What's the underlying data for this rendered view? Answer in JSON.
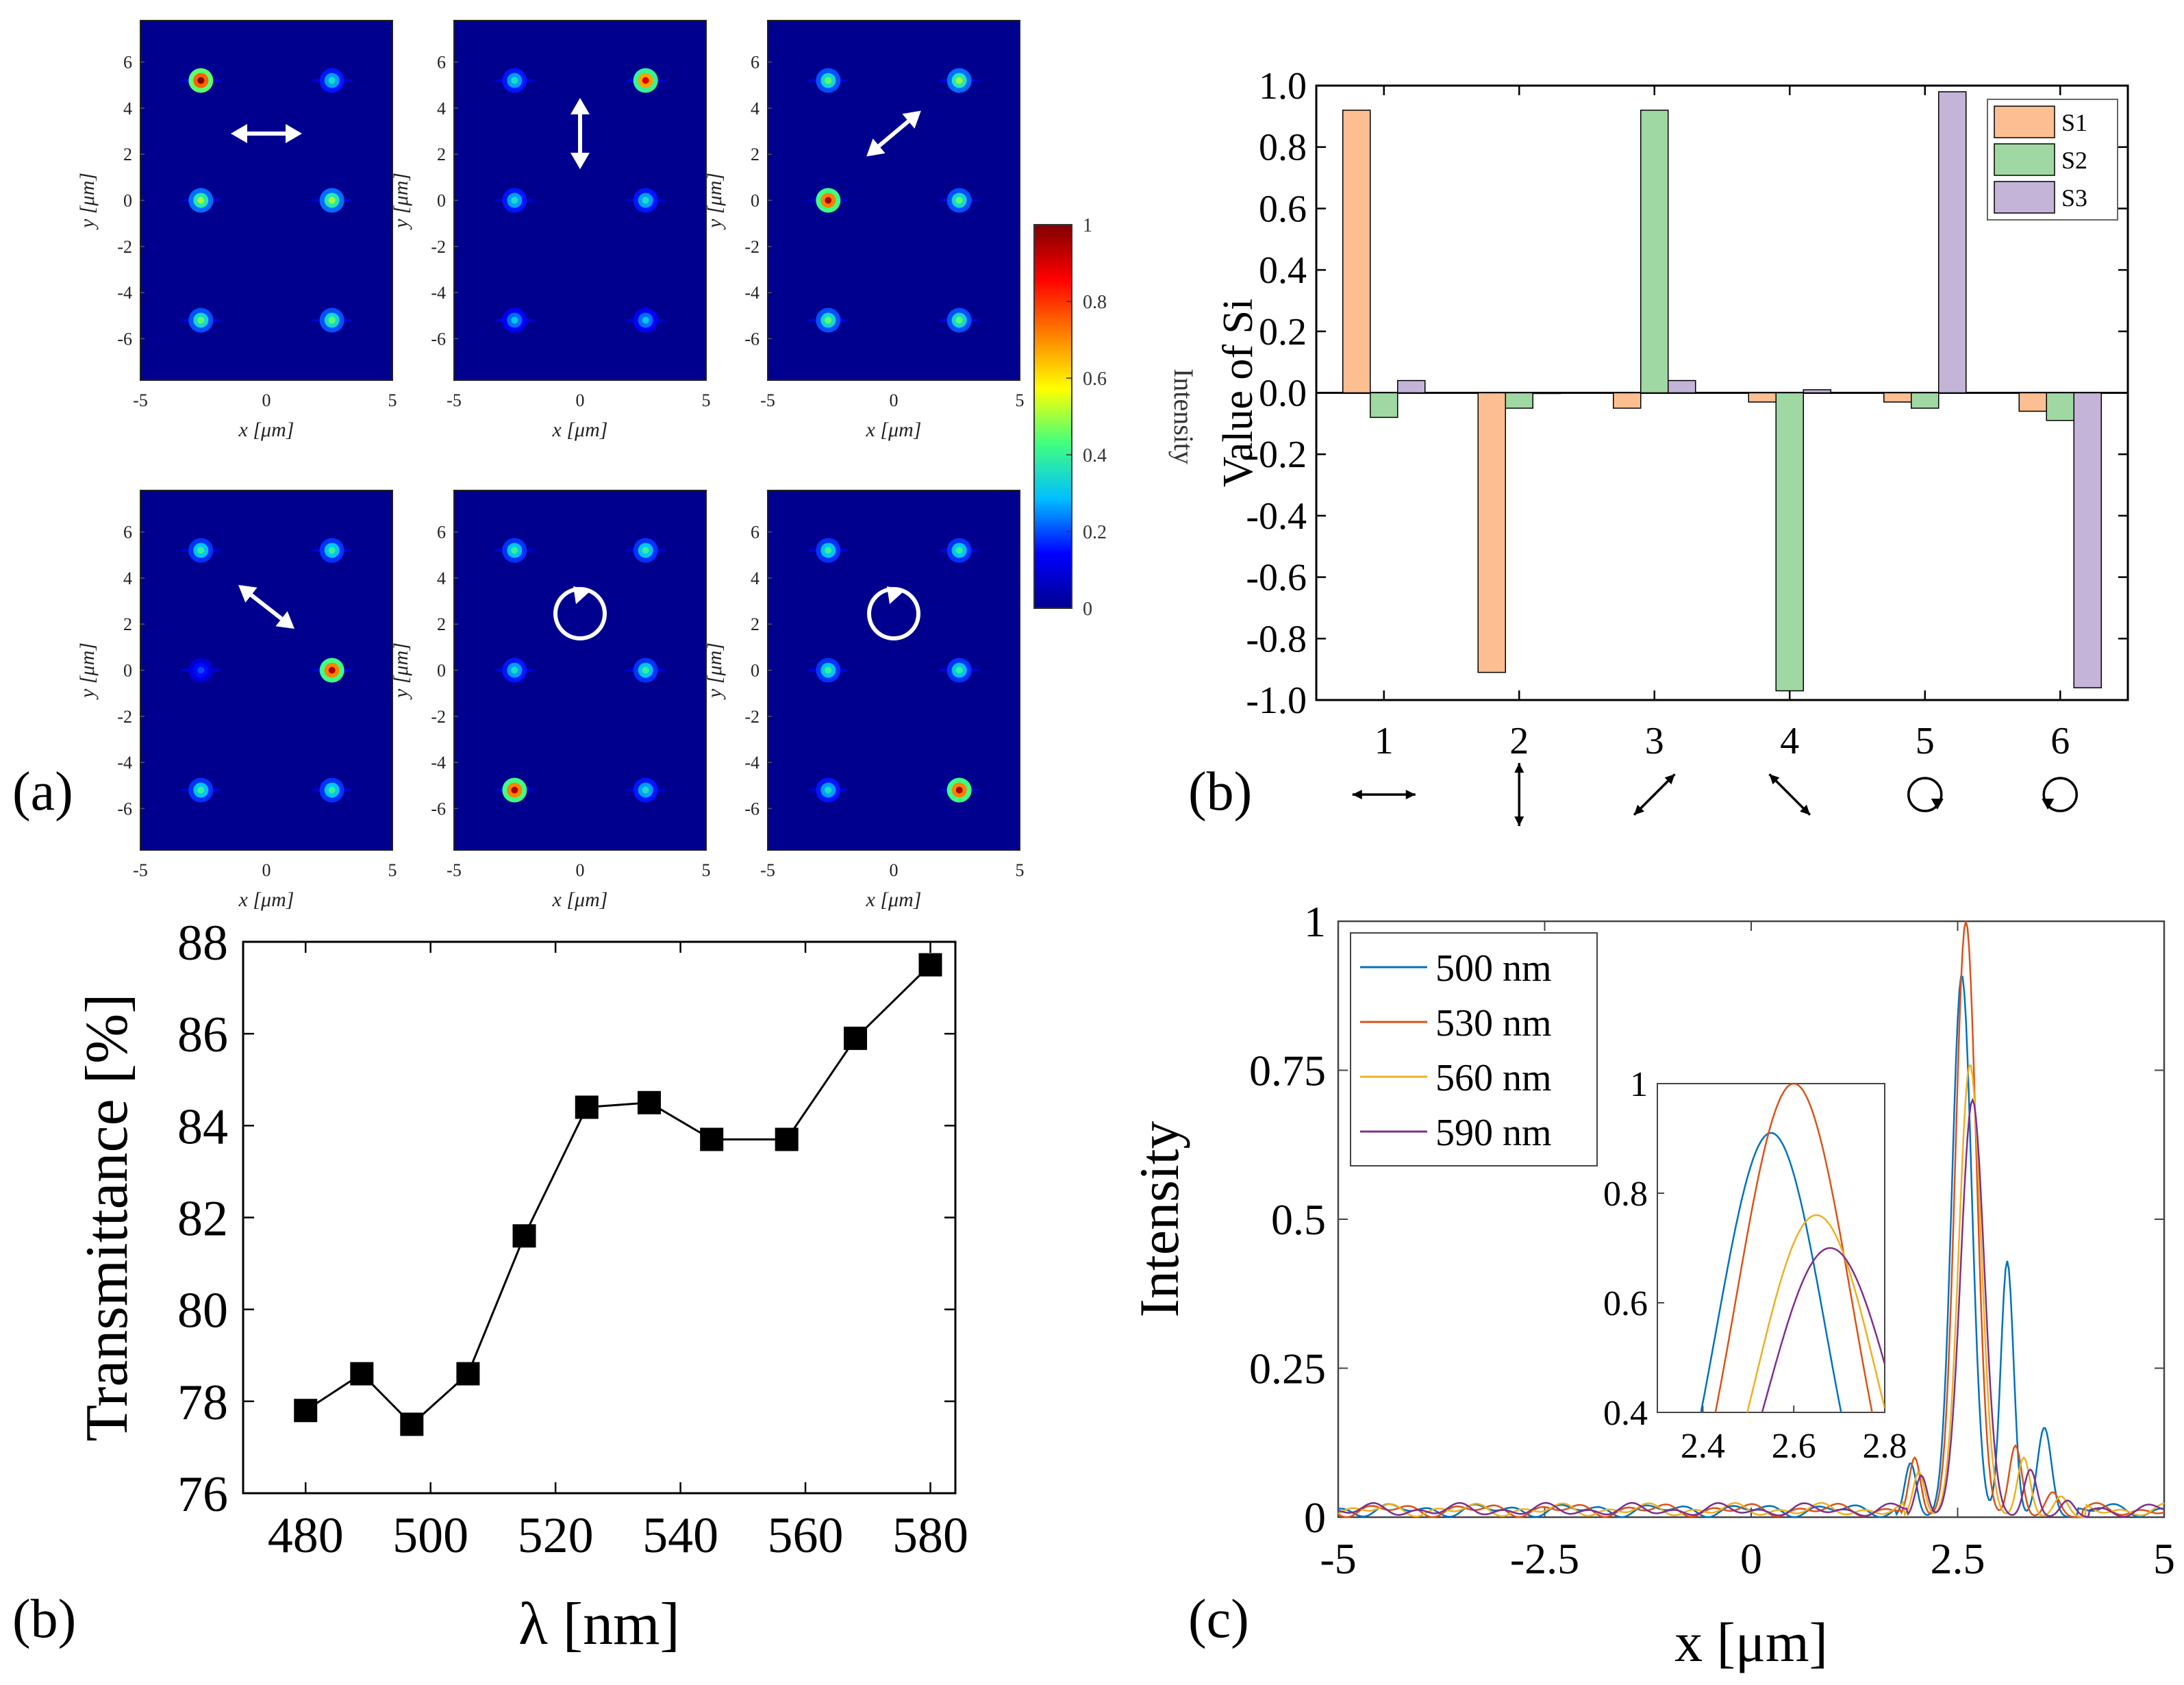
{
  "panel_labels": {
    "a": "(a)",
    "b_top": "(b)",
    "b_bottom": "(b)",
    "c": "(c)"
  },
  "heatmaps": {
    "x_label": "x [μm]",
    "y_label": "y [μm]",
    "x_ticks": [
      -5,
      0,
      5
    ],
    "y_ticks": [
      6,
      4,
      2,
      0,
      -2,
      -4,
      -6
    ],
    "x_range": [
      -5,
      5
    ],
    "y_range": [
      -7.8,
      7.8
    ],
    "spot_columns_x": [
      -2.6,
      2.6
    ],
    "spot_rows_y": [
      5.2,
      0,
      -5.2
    ],
    "panels": [
      {
        "polarization": "horizontal",
        "bright_spot": [
          -2.6,
          5.2
        ],
        "spot_levels": [
          [
            1,
            0.35
          ],
          [
            0.5,
            0.5
          ],
          [
            0.45,
            0.45
          ]
        ]
      },
      {
        "polarization": "vertical",
        "bright_spot": [
          2.6,
          5.2
        ],
        "spot_levels": [
          [
            0.35,
            0.9
          ],
          [
            0.35,
            0.35
          ],
          [
            0.3,
            0.3
          ]
        ]
      },
      {
        "polarization": "diagonal +45",
        "bright_spot": [
          -2.6,
          0
        ],
        "spot_levels": [
          [
            0.45,
            0.5
          ],
          [
            0.95,
            0.45
          ],
          [
            0.45,
            0.45
          ]
        ]
      },
      {
        "polarization": "diagonal -45",
        "bright_spot": [
          2.6,
          0
        ],
        "spot_levels": [
          [
            0.4,
            0.4
          ],
          [
            0.2,
            0.95
          ],
          [
            0.4,
            0.4
          ]
        ]
      },
      {
        "polarization": "circular",
        "bright_spot": [
          -2.6,
          -5.2
        ],
        "spot_levels": [
          [
            0.4,
            0.4
          ],
          [
            0.35,
            0.4
          ],
          [
            0.95,
            0.35
          ]
        ]
      },
      {
        "polarization": "circular",
        "bright_spot": [
          2.6,
          -5.2
        ],
        "spot_levels": [
          [
            0.4,
            0.4
          ],
          [
            0.4,
            0.4
          ],
          [
            0.35,
            0.95
          ]
        ]
      }
    ]
  },
  "colorbar": {
    "label": "Intensity",
    "ticks": [
      "0",
      "0.2",
      "0.4",
      "0.6",
      "0.8",
      "1"
    ],
    "colors": [
      "#00008f",
      "#0000ff",
      "#00bfff",
      "#40ff80",
      "#ffff00",
      "#ff8000",
      "#ff0000",
      "#800000"
    ]
  },
  "chart_data": [
    {
      "type": "bar",
      "title": "",
      "ylabel": "Value of Si",
      "categories": [
        "1",
        "2",
        "3",
        "4",
        "5",
        "6"
      ],
      "category_symbols": [
        "horizontal arrow",
        "vertical arrow",
        "diagonal +45 arrow",
        "diagonal -45 arrow",
        "circle",
        "circle"
      ],
      "ylim": [
        -1.0,
        1.0
      ],
      "yticks": [
        "1.0",
        "0.8",
        "0.6",
        "0.4",
        "0.2",
        "0.0",
        "-0.2",
        "-0.4",
        "-0.6",
        "-0.8",
        "-1.0"
      ],
      "legend": "top-right",
      "series": [
        {
          "name": "S1",
          "color": "#fdbe91",
          "values": [
            0.92,
            -0.91,
            -0.05,
            -0.03,
            -0.03,
            -0.06
          ]
        },
        {
          "name": "S2",
          "color": "#9fd8a2",
          "values": [
            -0.08,
            -0.05,
            0.92,
            -0.97,
            -0.05,
            -0.09
          ]
        },
        {
          "name": "S3",
          "color": "#c3b4d8",
          "values": [
            0.04,
            0.0,
            0.04,
            0.01,
            0.98,
            -0.96
          ]
        }
      ]
    },
    {
      "type": "line",
      "title": "",
      "xlabel": "λ [nm]",
      "ylabel": "Transmittance [%]",
      "xlim": [
        470,
        584
      ],
      "ylim": [
        76,
        88
      ],
      "xticks": [
        "480",
        "500",
        "520",
        "540",
        "560",
        "580"
      ],
      "yticks": [
        "76",
        "78",
        "80",
        "82",
        "84",
        "86",
        "88"
      ],
      "x": [
        480,
        489,
        497,
        506,
        515,
        525,
        535,
        545,
        557,
        568,
        580
      ],
      "y": [
        77.8,
        78.6,
        77.5,
        78.6,
        81.6,
        84.4,
        84.5,
        83.7,
        83.7,
        85.9,
        87.5
      ]
    },
    {
      "type": "line",
      "title": "",
      "xlabel": "x [μm]",
      "ylabel": "Intensity",
      "xlim": [
        -5,
        5
      ],
      "ylim": [
        0,
        1
      ],
      "xticks": [
        "-5",
        "-2.5",
        "0",
        "2.5",
        "5"
      ],
      "yticks": [
        "0",
        "0.25",
        "0.5",
        "0.75",
        "1"
      ],
      "legend": "top-left",
      "series": [
        {
          "name": "500 nm",
          "color": "#0072bd",
          "peak_x": 2.55,
          "peak": 0.91,
          "side": 0.43
        },
        {
          "name": "530 nm",
          "color": "#d95319",
          "peak_x": 2.6,
          "peak": 1.0,
          "side": 0.12
        },
        {
          "name": "560 nm",
          "color": "#edb120",
          "peak_x": 2.65,
          "peak": 0.76,
          "side": 0.1
        },
        {
          "name": "590 nm",
          "color": "#7e2f8e",
          "peak_x": 2.68,
          "peak": 0.7,
          "side": 0.08
        }
      ],
      "inset": {
        "xlim": [
          2.3,
          2.8
        ],
        "ylim": [
          0.4,
          1.0
        ],
        "xticks": [
          "2.4",
          "2.6",
          "2.8"
        ],
        "yticks": [
          "0.4",
          "0.6",
          "0.8",
          "1"
        ]
      }
    }
  ]
}
